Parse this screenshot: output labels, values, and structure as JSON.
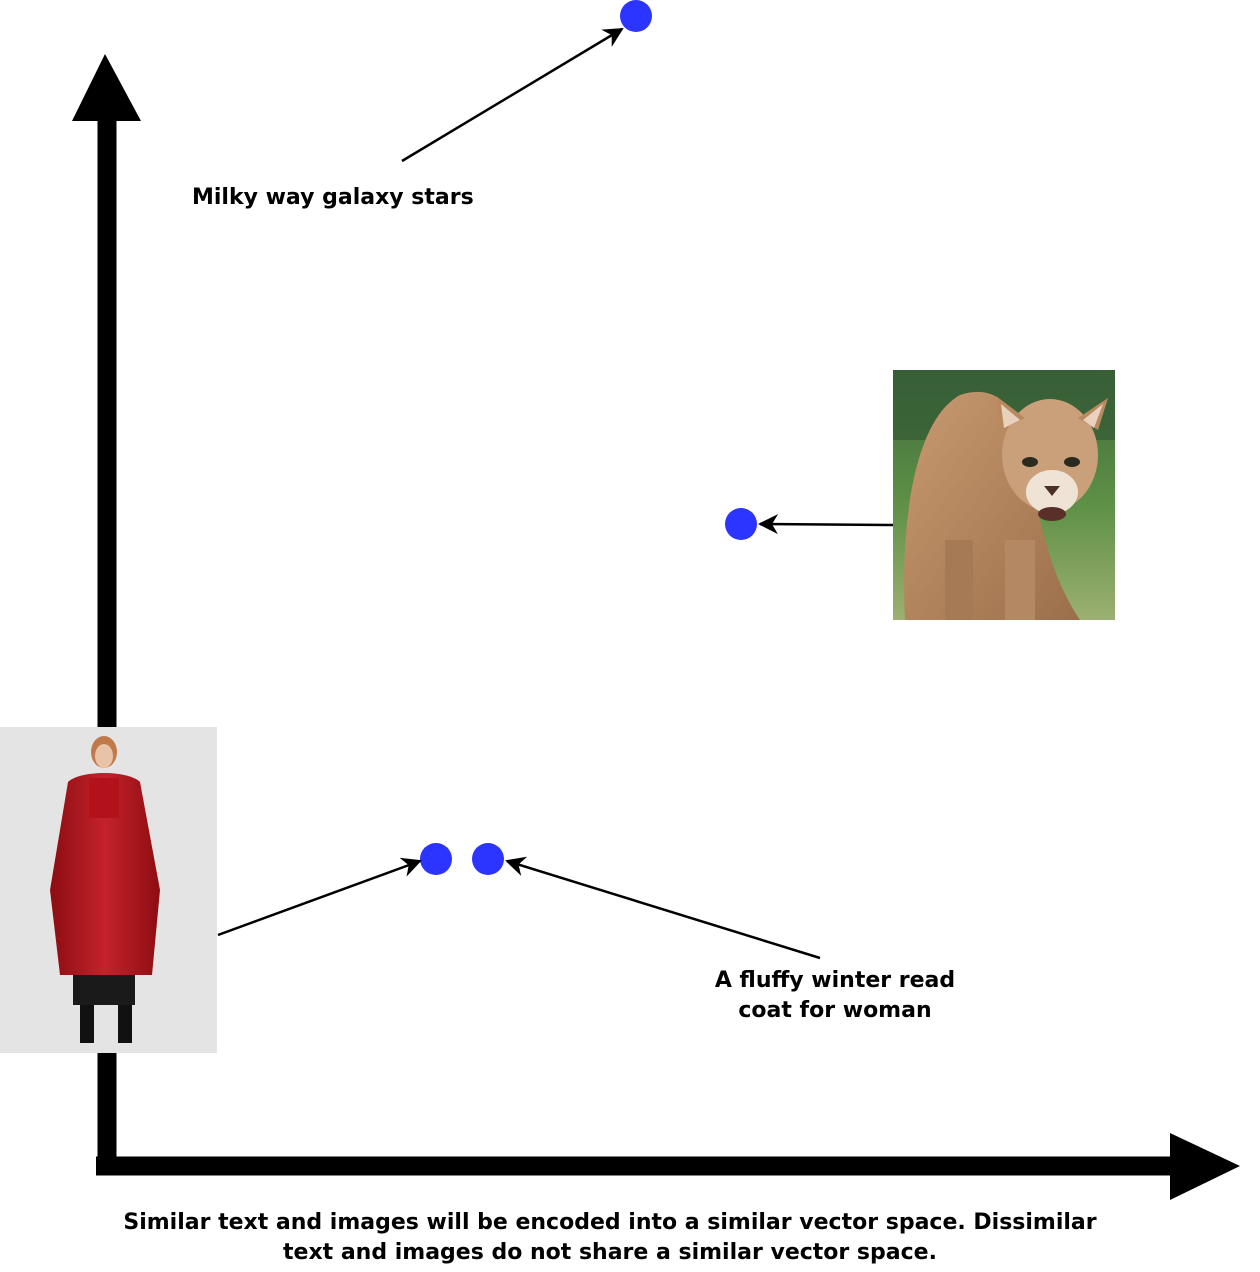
{
  "labels": {
    "galaxy": "Milky way galaxy stars",
    "coat": "A fluffy winter read\ncoat for woman"
  },
  "caption": "Similar text and images will be encoded into a similar vector space. Dissimilar\ntext and images do not share a similar vector space.",
  "colors": {
    "point": "#2c34ff",
    "axis": "#000000",
    "coat": "#b5161c",
    "cougar": "#b98a61"
  }
}
